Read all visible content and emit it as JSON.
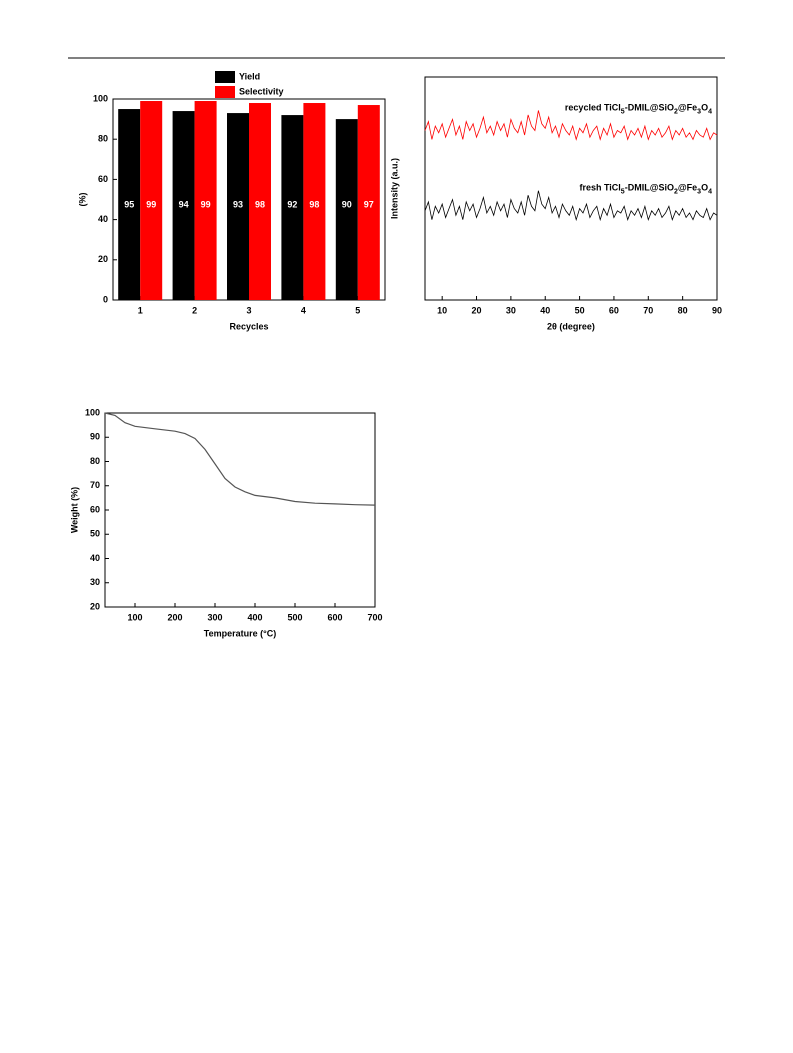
{
  "chart_data": [
    {
      "type": "bar",
      "categories": [
        "1",
        "2",
        "3",
        "4",
        "5"
      ],
      "series": [
        {
          "name": "Yield",
          "color": "#000000",
          "values": [
            95,
            94,
            93,
            92,
            90
          ]
        },
        {
          "name": "Selectivity",
          "color": "#ff0000",
          "values": [
            99,
            99,
            98,
            98,
            97
          ]
        }
      ],
      "ylim": [
        0,
        100
      ],
      "yticks": [
        0,
        20,
        40,
        60,
        80,
        100
      ],
      "xlabel": "Recycles",
      "ylabel": "(%)",
      "data_labels": true
    },
    {
      "type": "line",
      "x": [
        5,
        6,
        7,
        8,
        9,
        10,
        11,
        12,
        13,
        14,
        15,
        16,
        17,
        18,
        19,
        20,
        21,
        22,
        23,
        24,
        25,
        26,
        27,
        28,
        29,
        30,
        31,
        32,
        33,
        34,
        35,
        36,
        37,
        38,
        39,
        40,
        41,
        42,
        43,
        44,
        45,
        46,
        47,
        48,
        49,
        50,
        51,
        52,
        53,
        54,
        55,
        56,
        57,
        58,
        59,
        60,
        61,
        62,
        63,
        64,
        65,
        66,
        67,
        68,
        69,
        70,
        71,
        72,
        73,
        74,
        75,
        76,
        77,
        78,
        79,
        80,
        81,
        82,
        83,
        84,
        85,
        86,
        87,
        88,
        89,
        90
      ],
      "series": [
        {
          "name": "recycled TiCl5-DMIL@SiO2@Fe3O4",
          "color": "#ff0000",
          "values": [
            76,
            80,
            72,
            78,
            75,
            79,
            73,
            77,
            81,
            74,
            78,
            72,
            80,
            76,
            79,
            73,
            77,
            82,
            75,
            78,
            74,
            80,
            76,
            79,
            73,
            81,
            77,
            75,
            80,
            74,
            83,
            78,
            76,
            85,
            79,
            77,
            82,
            75,
            78,
            73,
            79,
            76,
            74,
            78,
            72,
            77,
            75,
            79,
            73,
            76,
            78,
            72,
            77,
            74,
            79,
            73,
            76,
            75,
            78,
            72,
            76,
            74,
            77,
            73,
            78,
            72,
            76,
            74,
            77,
            73,
            75,
            78,
            72,
            76,
            74,
            77,
            73,
            75,
            72,
            76,
            74,
            73,
            77,
            72,
            75,
            74
          ]
        },
        {
          "name": "fresh TiCl5-DMIL@SiO2@Fe3O4",
          "color": "#000000",
          "values": [
            40,
            44,
            36,
            42,
            39,
            43,
            37,
            41,
            45,
            38,
            42,
            36,
            44,
            40,
            43,
            37,
            41,
            46,
            39,
            42,
            38,
            44,
            40,
            43,
            37,
            45,
            41,
            39,
            44,
            38,
            47,
            42,
            40,
            49,
            43,
            41,
            46,
            39,
            42,
            37,
            43,
            40,
            38,
            42,
            36,
            41,
            39,
            43,
            37,
            40,
            42,
            36,
            41,
            38,
            43,
            37,
            40,
            39,
            42,
            36,
            40,
            38,
            41,
            37,
            42,
            36,
            40,
            38,
            41,
            37,
            39,
            42,
            36,
            40,
            38,
            41,
            37,
            39,
            36,
            40,
            38,
            37,
            41,
            36,
            39,
            38
          ]
        }
      ],
      "xlim": [
        5,
        90
      ],
      "xticks": [
        10,
        20,
        30,
        40,
        50,
        60,
        70,
        80,
        90
      ],
      "ylim": [
        0,
        100
      ],
      "xlabel": "2θ (degree)",
      "ylabel": "Intensity (a.u.)"
    },
    {
      "type": "line",
      "x": [
        25,
        50,
        75,
        100,
        150,
        200,
        225,
        250,
        275,
        300,
        325,
        350,
        375,
        400,
        450,
        500,
        550,
        600,
        650,
        700
      ],
      "series": [
        {
          "color": "#555555",
          "values": [
            100,
            99,
            96,
            94.5,
            93.5,
            92.5,
            91.5,
            89.5,
            85,
            79,
            73,
            69.5,
            67.5,
            66,
            65,
            63.5,
            62.8,
            62.5,
            62.2,
            62
          ]
        }
      ],
      "xlim": [
        25,
        700
      ],
      "xticks": [
        100,
        200,
        300,
        400,
        500,
        600,
        700
      ],
      "ylim": [
        20,
        100
      ],
      "yticks": [
        20,
        30,
        40,
        50,
        60,
        70,
        80,
        90,
        100
      ],
      "xlabel": "Temperature (°C)",
      "ylabel": "Weight (%)"
    }
  ]
}
